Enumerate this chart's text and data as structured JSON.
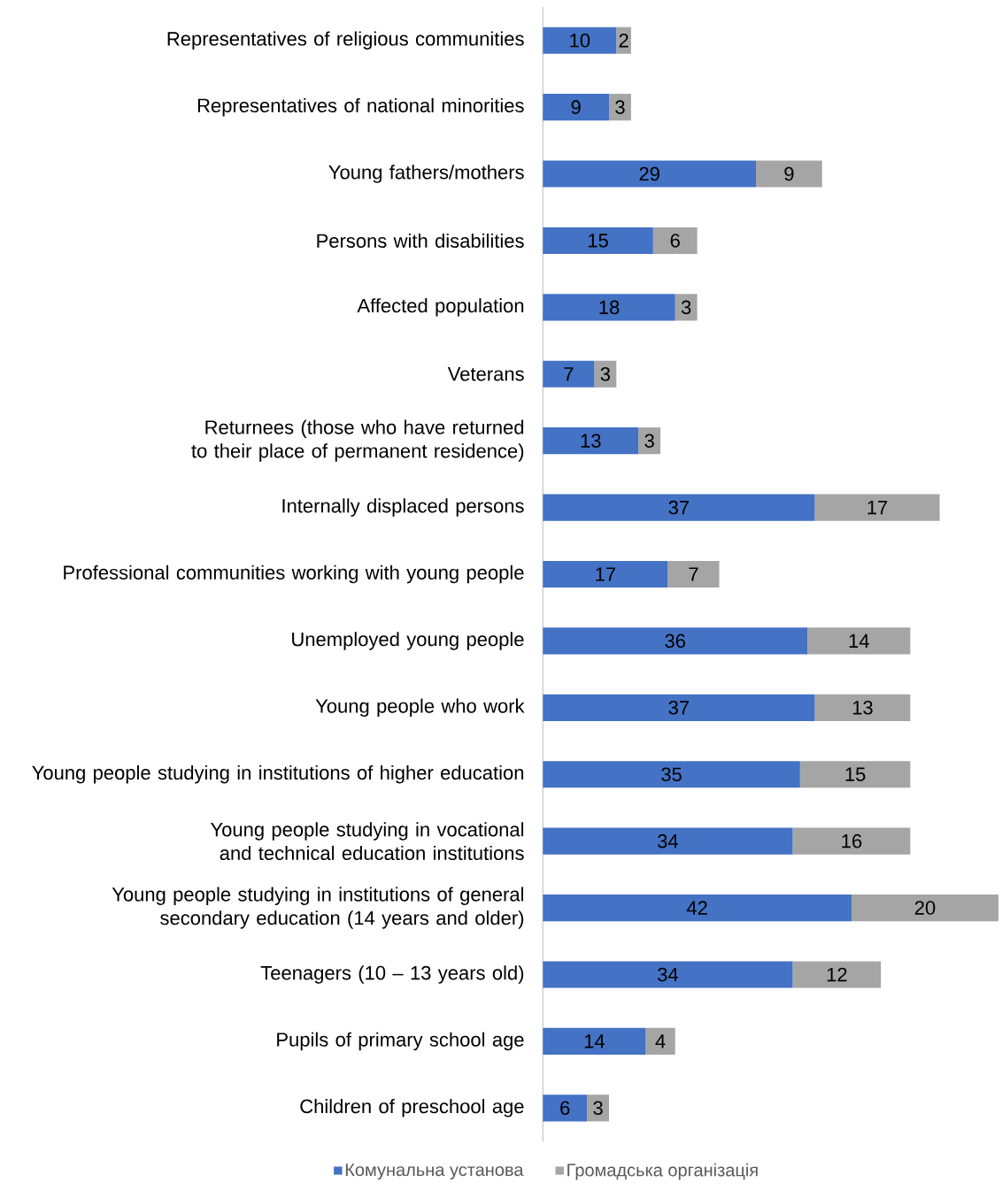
{
  "chart_data": {
    "type": "bar",
    "orientation": "horizontal",
    "stacked": true,
    "data_labels": true,
    "legend": "bottom",
    "categories": [
      "Representatives of religious communities",
      "Representatives of national minorities",
      "Young fathers/mothers",
      "Persons with disabilities",
      "Affected population",
      "Veterans",
      "Returnees (those who have returned to their place of permanent residence)",
      "Internally displaced persons",
      "Professional communities working with young people",
      "Unemployed young people",
      "Young people who work",
      "Young people studying in institutions of higher education",
      "Young people studying in vocational and technical education institutions",
      "Young people studying in institutions of general secondary education (14 years and older)",
      "Teenagers (10 – 13 years old)",
      "Pupils of primary school age",
      "Children of preschool age"
    ],
    "series": [
      {
        "name": "Комунальна установа",
        "color": "#4472c4",
        "values": [
          10,
          9,
          29,
          15,
          18,
          7,
          13,
          37,
          17,
          36,
          37,
          35,
          34,
          42,
          34,
          14,
          6
        ]
      },
      {
        "name": "Громадська організація",
        "color": "#a5a5a5",
        "values": [
          2,
          3,
          9,
          6,
          3,
          3,
          3,
          17,
          7,
          14,
          13,
          15,
          16,
          20,
          12,
          4,
          3
        ]
      }
    ]
  }
}
